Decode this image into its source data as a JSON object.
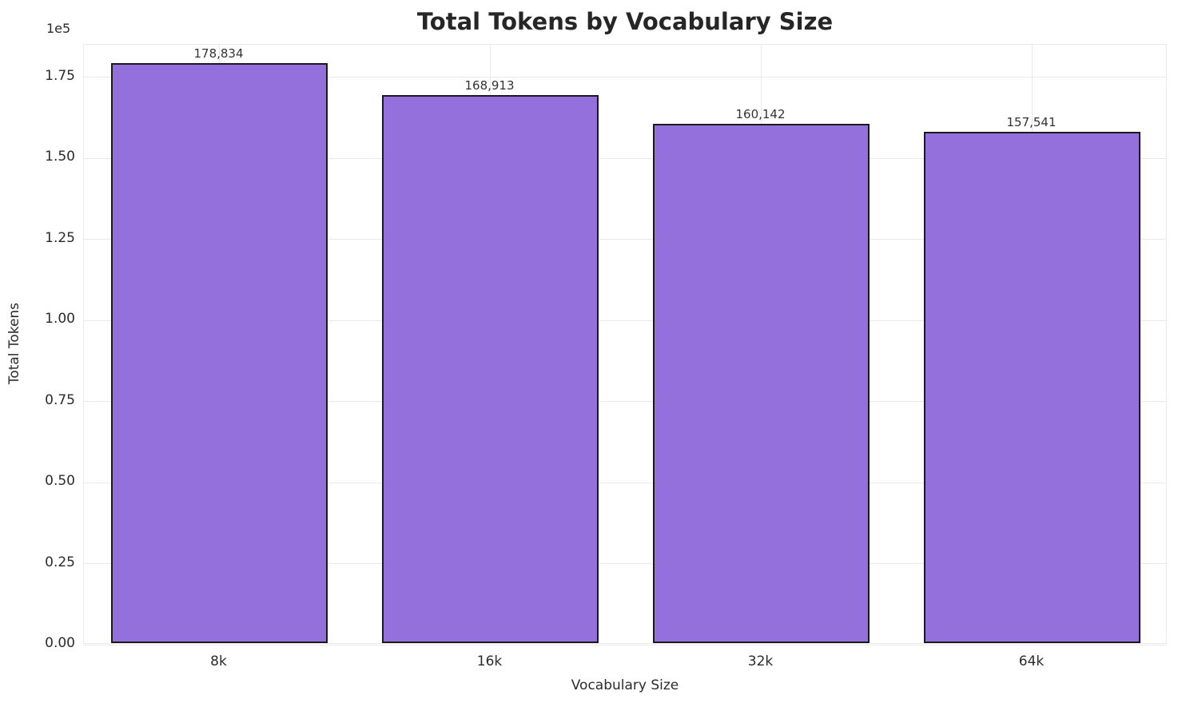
{
  "chart_data": {
    "type": "bar",
    "title": "Total Tokens by Vocabulary Size",
    "xlabel": "Vocabulary Size",
    "ylabel": "Total Tokens",
    "y_offset_text": "1e5",
    "categories": [
      "8k",
      "16k",
      "32k",
      "64k"
    ],
    "values": [
      178834,
      168913,
      160142,
      157541
    ],
    "value_labels": [
      "178,834",
      "168,913",
      "160,142",
      "157,541"
    ],
    "y_ticks": [
      0,
      25000,
      50000,
      75000,
      100000,
      125000,
      150000,
      175000
    ],
    "y_tick_labels": [
      "0.00",
      "0.25",
      "0.50",
      "0.75",
      "1.00",
      "1.25",
      "1.50",
      "1.75"
    ],
    "ylim": [
      0,
      185000
    ],
    "grid": true,
    "legend": "none",
    "bar_color": "#9370DB",
    "bar_edge_color": "#1a1a1a",
    "grid_color": "#e9e9e9"
  }
}
